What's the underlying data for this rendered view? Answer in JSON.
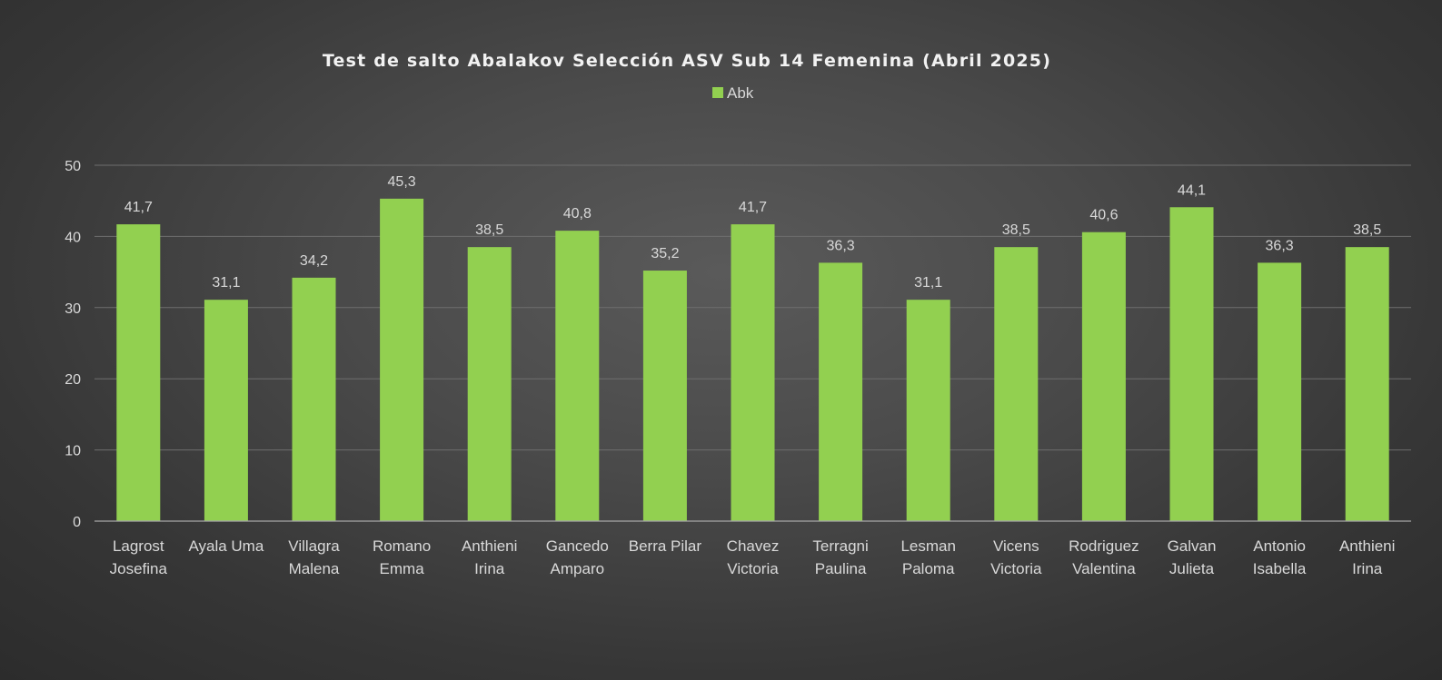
{
  "chart_data": {
    "type": "bar",
    "title": "Test de salto Abalakov Selección ASV Sub 14 Femenina (Abril 2025)",
    "legend": {
      "position": "top",
      "entries": [
        "Abk"
      ]
    },
    "categories": [
      [
        "Lagrost",
        "Josefina"
      ],
      [
        "Ayala Uma"
      ],
      [
        "Villagra",
        "Malena"
      ],
      [
        "Romano",
        "Emma"
      ],
      [
        "Anthieni",
        "Irina"
      ],
      [
        "Gancedo",
        "Amparo"
      ],
      [
        "Berra Pilar"
      ],
      [
        "Chavez",
        "Victoria"
      ],
      [
        "Terragni",
        "Paulina"
      ],
      [
        "Lesman",
        "Paloma"
      ],
      [
        "Vicens",
        "Victoria"
      ],
      [
        "Rodriguez",
        "Valentina"
      ],
      [
        "Galvan",
        "Julieta"
      ],
      [
        "Antonio",
        "Isabella"
      ],
      [
        "Anthieni",
        "Irina"
      ]
    ],
    "series": [
      {
        "name": "Abk",
        "color": "#92d050",
        "values": [
          41.7,
          31.1,
          34.2,
          45.3,
          38.5,
          40.8,
          35.2,
          41.7,
          36.3,
          31.1,
          38.5,
          40.6,
          44.1,
          36.3,
          38.5
        ],
        "labels": [
          "41,7",
          "31,1",
          "34,2",
          "45,3",
          "38,5",
          "40,8",
          "35,2",
          "41,7",
          "36,3",
          "31,1",
          "38,5",
          "40,6",
          "44,1",
          "36,3",
          "38,5"
        ]
      }
    ],
    "ylim": [
      0,
      50
    ],
    "yticks": [
      0,
      10,
      20,
      30,
      40,
      50
    ],
    "grid": true
  }
}
